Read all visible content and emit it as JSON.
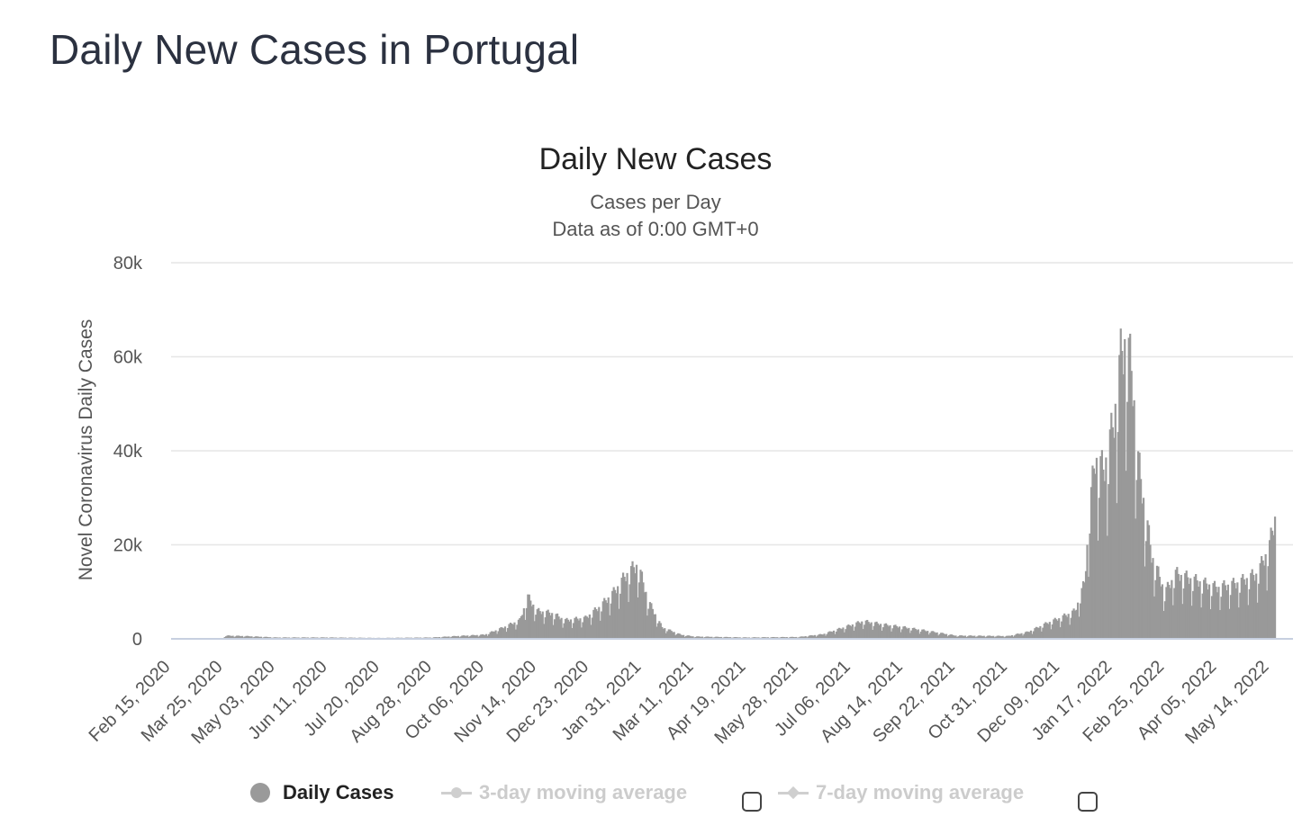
{
  "page": {
    "title": "Daily New Cases in Portugal"
  },
  "chart_data": {
    "type": "bar",
    "title": "Daily New Cases",
    "subtitle": [
      "Cases per Day",
      "Data as of 0:00 GMT+0"
    ],
    "ylabel": "Novel Coronavirus Daily Cases",
    "xlabel": "",
    "ylim": [
      0,
      80000
    ],
    "yticks": [
      0,
      20000,
      40000,
      60000,
      80000
    ],
    "ytick_labels": [
      "0",
      "20k",
      "40k",
      "60k",
      "80k"
    ],
    "xtick_labels": [
      "Feb 15, 2020",
      "Mar 25, 2020",
      "May 03, 2020",
      "Jun 11, 2020",
      "Jul 20, 2020",
      "Aug 28, 2020",
      "Oct 06, 2020",
      "Nov 14, 2020",
      "Dec 23, 2020",
      "Jan 31, 2021",
      "Mar 11, 2021",
      "Apr 19, 2021",
      "May 28, 2021",
      "Jul 06, 2021",
      "Aug 14, 2021",
      "Sep 22, 2021",
      "Oct 31, 2021",
      "Dec 09, 2021",
      "Jan 17, 2022",
      "Feb 25, 2022",
      "Apr 05, 2022",
      "May 14, 2022"
    ],
    "grid": true,
    "legend_position": "bottom-center",
    "bar_color": "#999999",
    "series": [
      {
        "name": "Daily Cases",
        "x_start": "Feb 15, 2020",
        "interval_days": 1,
        "values_note_points": [
          [
            "2020-03-25",
            700
          ],
          [
            "2020-04-10",
            600
          ],
          [
            "2020-05-03",
            300
          ],
          [
            "2020-06-11",
            300
          ],
          [
            "2020-07-20",
            200
          ],
          [
            "2020-08-28",
            300
          ],
          [
            "2020-09-15",
            600
          ],
          [
            "2020-10-06",
            900
          ],
          [
            "2020-10-20",
            2500
          ],
          [
            "2020-11-01",
            4000
          ],
          [
            "2020-11-07",
            9000
          ],
          [
            "2020-11-14",
            6000
          ],
          [
            "2020-11-25",
            5500
          ],
          [
            "2020-12-05",
            4000
          ],
          [
            "2020-12-20",
            4500
          ],
          [
            "2020-12-31",
            7000
          ],
          [
            "2021-01-10",
            10000
          ],
          [
            "2021-01-20",
            14000
          ],
          [
            "2021-01-28",
            16000
          ],
          [
            "2021-02-05",
            8000
          ],
          [
            "2021-02-15",
            2500
          ],
          [
            "2021-03-01",
            900
          ],
          [
            "2021-03-11",
            500
          ],
          [
            "2021-04-19",
            300
          ],
          [
            "2021-05-28",
            400
          ],
          [
            "2021-06-15",
            1000
          ],
          [
            "2021-07-01",
            2500
          ],
          [
            "2021-07-15",
            3800
          ],
          [
            "2021-08-01",
            3000
          ],
          [
            "2021-08-14",
            2500
          ],
          [
            "2021-08-30",
            1800
          ],
          [
            "2021-09-22",
            700
          ],
          [
            "2021-10-31",
            600
          ],
          [
            "2021-11-15",
            1500
          ],
          [
            "2021-11-30",
            3500
          ],
          [
            "2021-12-09",
            4500
          ],
          [
            "2021-12-20",
            6000
          ],
          [
            "2021-12-27",
            12000
          ],
          [
            "2021-12-31",
            28000
          ],
          [
            "2022-01-04",
            39000
          ],
          [
            "2022-01-10",
            36000
          ],
          [
            "2022-01-17",
            45000
          ],
          [
            "2022-01-23",
            60000
          ],
          [
            "2022-01-27",
            65000
          ],
          [
            "2022-02-01",
            55000
          ],
          [
            "2022-02-05",
            38000
          ],
          [
            "2022-02-10",
            28000
          ],
          [
            "2022-02-15",
            18000
          ],
          [
            "2022-02-25",
            10000
          ],
          [
            "2022-03-05",
            14000
          ],
          [
            "2022-03-15",
            13000
          ],
          [
            "2022-04-05",
            11000
          ],
          [
            "2022-04-20",
            12000
          ],
          [
            "2022-05-05",
            14000
          ],
          [
            "2022-05-14",
            20000
          ],
          [
            "2022-05-18",
            26000
          ]
        ]
      }
    ]
  },
  "legend": {
    "items": [
      {
        "label": "Daily Cases",
        "active": true
      },
      {
        "label": "3-day moving average",
        "active": false
      },
      {
        "label": "7-day moving average",
        "active": false
      }
    ]
  }
}
